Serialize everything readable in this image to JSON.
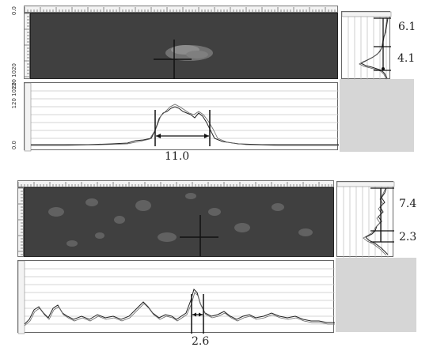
{
  "panel_top": {
    "axis_labels": {
      "image_top": "0.0",
      "image_bottom": "120 1020",
      "profile_top": "120 1020",
      "profile_bottom": "0.0"
    },
    "measurements": {
      "horizontal_width": "11.0",
      "vertical_upper": "6.1",
      "vertical_lower": "4.1"
    }
  },
  "panel_bottom": {
    "measurements": {
      "horizontal_width": "2.6",
      "vertical_upper": "7.4",
      "vertical_lower": "2.3"
    }
  },
  "colors": {
    "image_bg": "#404040",
    "side_fill": "#d6d6d6",
    "trace": "#222222"
  }
}
